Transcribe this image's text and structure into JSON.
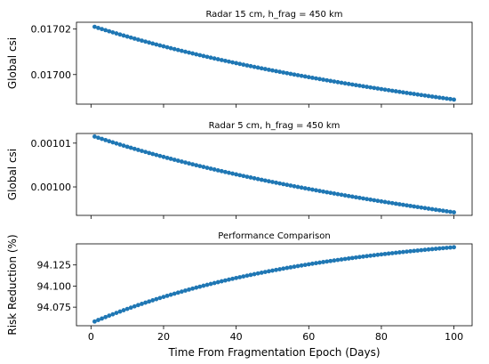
{
  "chart_data": [
    {
      "type": "scatter",
      "title": "Radar 15 cm, h_frag = 450 km",
      "ylabel": "Global csi",
      "xlabel": "",
      "ylim": [
        0.016987,
        0.017023
      ],
      "xlim": [
        -4,
        105
      ],
      "yticks": [
        0.017,
        0.01702
      ],
      "ytick_labels": [
        "0.01700",
        "0.01702"
      ],
      "x_range": [
        1,
        100
      ],
      "y_start": 0.017021,
      "y_end": 0.016989,
      "series": [
        {
          "color": "#1f77b4"
        }
      ]
    },
    {
      "type": "scatter",
      "title": "Radar 5 cm, h_frag = 450 km",
      "ylabel": "Global csi",
      "xlabel": "",
      "ylim": [
        0.0009935,
        0.0010122
      ],
      "xlim": [
        -4,
        105
      ],
      "yticks": [
        0.001,
        0.00101
      ],
      "ytick_labels": [
        "0.00100",
        "0.00101"
      ],
      "x_range": [
        1,
        100
      ],
      "y_start": 0.0010115,
      "y_end": 0.0009942,
      "series": [
        {
          "color": "#1f77b4"
        }
      ]
    },
    {
      "type": "scatter",
      "title": "Performance Comparison",
      "ylabel": "Risk Reduction (%)",
      "xlabel": "Time From Fragmentation Epoch (Days)",
      "ylim": [
        94.053,
        94.15
      ],
      "xlim": [
        -4,
        105
      ],
      "yticks": [
        94.075,
        94.1,
        94.125
      ],
      "ytick_labels": [
        "94.075",
        "94.100",
        "94.125"
      ],
      "xticks": [
        0,
        20,
        40,
        60,
        80,
        100
      ],
      "xtick_labels": [
        "0",
        "20",
        "40",
        "60",
        "80",
        "100"
      ],
      "x_range": [
        1,
        100
      ],
      "y_start": 94.058,
      "y_end": 94.146,
      "series": [
        {
          "color": "#1f77b4"
        }
      ]
    }
  ]
}
